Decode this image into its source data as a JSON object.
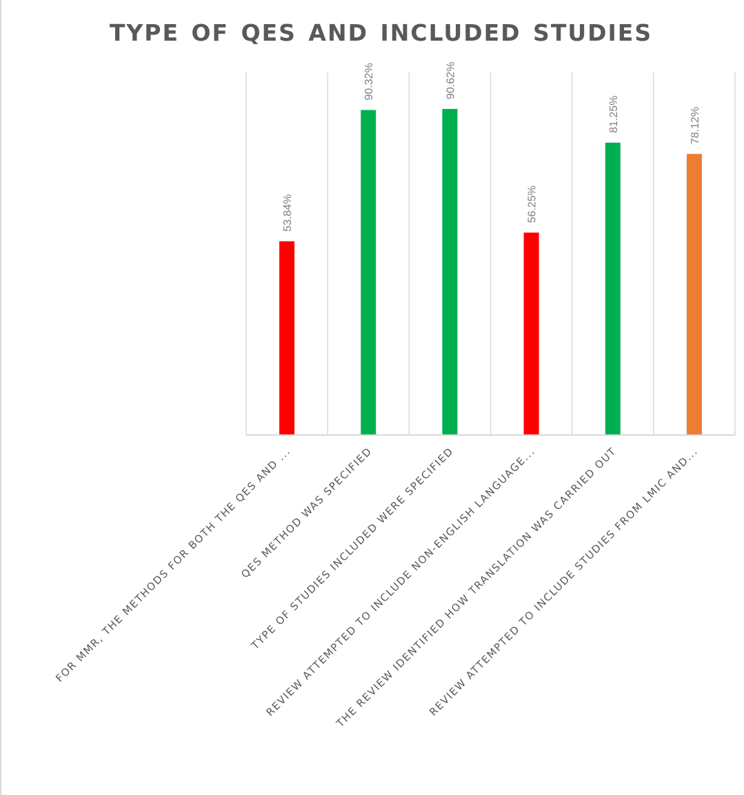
{
  "chart_data": {
    "type": "bar",
    "title": "TYPE OF QES AND INCLUDED STUDIES",
    "categories": [
      "FOR MMR, THE METHODS FOR BOTH THE QES AND ...",
      "QES METHOD WAS SPECIFIED",
      "TYPE OF STUDIES INCLUDED WERE SPECIFIED",
      "REVIEW ATTEMPTED TO INCLUDE NON-ENGLISH LANGUAGE...",
      "THE REVIEW IDENTIFIED HOW TRANSLATION WAS CARRIED OUT",
      "REVIEW ATTEMPTED TO INCLUDE STUDIES FROM LMIC AND..."
    ],
    "values": [
      53.84,
      90.32,
      90.62,
      56.25,
      81.25,
      78.12
    ],
    "value_labels": [
      "53.84%",
      "90.32%",
      "90.62%",
      "56.25%",
      "81.25%",
      "78.12%"
    ],
    "colors": [
      "#ff0000",
      "#00b050",
      "#00b050",
      "#ff0000",
      "#00b050",
      "#ed7d31"
    ],
    "ylim": [
      0,
      100
    ],
    "xlabel": "",
    "ylabel": "",
    "grid": "vertical",
    "legend": "none"
  }
}
